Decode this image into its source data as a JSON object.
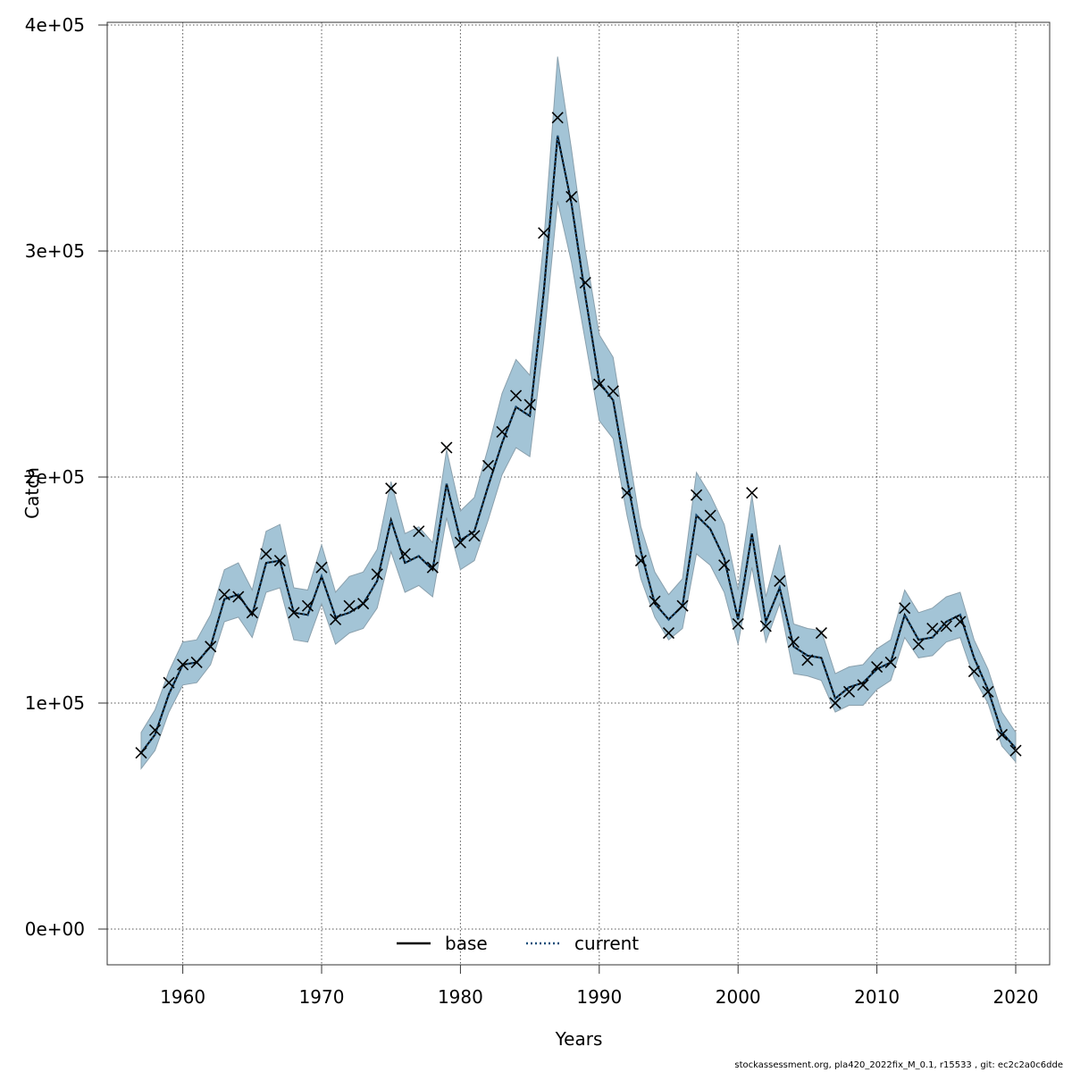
{
  "chart_data": {
    "type": "line",
    "xlabel": "Years",
    "ylabel": "Catch",
    "xlim": [
      1957,
      2020
    ],
    "ylim": [
      0,
      400000
    ],
    "x_ticks": [
      1960,
      1970,
      1980,
      1990,
      2000,
      2010,
      2020
    ],
    "x_tick_labels": [
      "1960",
      "1970",
      "1980",
      "1990",
      "2000",
      "2010",
      "2020"
    ],
    "y_ticks": [
      0,
      100000,
      200000,
      300000,
      400000
    ],
    "y_tick_labels": [
      "0e+00",
      "1e+05",
      "2e+05",
      "3e+05",
      "4e+05"
    ],
    "grid": true,
    "legend_position": "bottom-center",
    "colors": {
      "band": "#a3c4d6",
      "band_edge": "#8aa0ad",
      "current": "#1a4f7a",
      "base": "#000000",
      "observed": "#000000"
    },
    "x": [
      1957,
      1958,
      1959,
      1960,
      1961,
      1962,
      1963,
      1964,
      1965,
      1966,
      1967,
      1968,
      1969,
      1970,
      1971,
      1972,
      1973,
      1974,
      1975,
      1976,
      1977,
      1978,
      1979,
      1980,
      1981,
      1982,
      1983,
      1984,
      1985,
      1986,
      1987,
      1988,
      1989,
      1990,
      1991,
      1992,
      1993,
      1994,
      1995,
      1996,
      1997,
      1998,
      1999,
      2000,
      2001,
      2002,
      2003,
      2004,
      2005,
      2006,
      2007,
      2008,
      2009,
      2010,
      2011,
      2012,
      2013,
      2014,
      2015,
      2016,
      2017,
      2018,
      2019,
      2020
    ],
    "series": [
      {
        "name": "base",
        "style": "solid",
        "values": [
          78000,
          86000,
          104000,
          117000,
          118000,
          125000,
          146000,
          148000,
          139000,
          162000,
          163000,
          140000,
          139000,
          156000,
          138000,
          140000,
          144000,
          154000,
          181000,
          162000,
          165000,
          159000,
          197000,
          172000,
          176000,
          196000,
          215000,
          231000,
          227000,
          282000,
          351000,
          321000,
          280000,
          242000,
          234000,
          199000,
          167000,
          144000,
          137000,
          143000,
          183000,
          177000,
          164000,
          137000,
          175000,
          136000,
          151000,
          125000,
          121000,
          120000,
          102000,
          107000,
          109000,
          115000,
          118000,
          139000,
          128000,
          129000,
          136000,
          139000,
          120000,
          106000,
          87000,
          80000
        ]
      },
      {
        "name": "current",
        "style": "dotted",
        "values": [
          78000,
          86000,
          104000,
          117000,
          118000,
          125000,
          146000,
          148000,
          139000,
          162000,
          163000,
          140000,
          139000,
          156000,
          138000,
          140000,
          144000,
          154000,
          181000,
          162000,
          165000,
          159000,
          197000,
          172000,
          176000,
          196000,
          215000,
          231000,
          227000,
          282000,
          351000,
          321000,
          280000,
          242000,
          234000,
          199000,
          167000,
          144000,
          137000,
          143000,
          183000,
          177000,
          164000,
          137000,
          175000,
          136000,
          151000,
          125000,
          121000,
          120000,
          102000,
          107000,
          109000,
          115000,
          118000,
          139000,
          128000,
          129000,
          136000,
          139000,
          120000,
          106000,
          87000,
          80000
        ]
      }
    ],
    "band_upper": [
      87000,
      97000,
      114000,
      127000,
      128000,
      139000,
      159000,
      162000,
      150000,
      176000,
      179000,
      151000,
      150000,
      170000,
      149000,
      156000,
      158000,
      168000,
      198000,
      175000,
      178000,
      171000,
      212000,
      185000,
      191000,
      213000,
      237000,
      252000,
      245000,
      304000,
      386000,
      345000,
      300000,
      263000,
      253000,
      215000,
      178000,
      158000,
      148000,
      155000,
      202000,
      192000,
      179000,
      150000,
      192000,
      147000,
      170000,
      135000,
      133000,
      132000,
      113000,
      116000,
      117000,
      124000,
      128000,
      150000,
      140000,
      142000,
      147000,
      149000,
      128000,
      115000,
      96000,
      87000
    ],
    "band_lower": [
      71000,
      79000,
      96000,
      108000,
      109000,
      117000,
      136000,
      138000,
      129000,
      149000,
      151000,
      128000,
      127000,
      144000,
      126000,
      131000,
      133000,
      142000,
      167000,
      149000,
      152000,
      147000,
      182000,
      159000,
      163000,
      181000,
      201000,
      213000,
      209000,
      260000,
      322000,
      295000,
      260000,
      225000,
      217000,
      183000,
      155000,
      138000,
      128000,
      133000,
      166000,
      161000,
      149000,
      126000,
      160000,
      127000,
      144000,
      113000,
      112000,
      110000,
      96000,
      99000,
      99000,
      106000,
      110000,
      129000,
      120000,
      121000,
      127000,
      129000,
      111000,
      100000,
      81000,
      74000
    ],
    "observed": [
      78000,
      88000,
      109000,
      117000,
      118000,
      125000,
      148000,
      147000,
      140000,
      166000,
      163000,
      140000,
      143000,
      160000,
      137000,
      143000,
      144000,
      157000,
      195000,
      166000,
      176000,
      160000,
      213000,
      171000,
      174000,
      205000,
      220000,
      236000,
      232000,
      308000,
      359000,
      324000,
      286000,
      241000,
      238000,
      193000,
      163000,
      145000,
      131000,
      143000,
      192000,
      183000,
      161000,
      135000,
      193000,
      134000,
      154000,
      127000,
      119000,
      131000,
      100000,
      105000,
      108000,
      116000,
      118000,
      142000,
      126000,
      133000,
      134000,
      136000,
      114000,
      105000,
      86000,
      79000
    ],
    "legend": [
      {
        "label": "base",
        "style": "solid"
      },
      {
        "label": "current",
        "style": "dotted"
      }
    ]
  },
  "footer_text": "stockassessment.org, pla420_2022fix_M_0.1, r15533 , git: ec2c2a0c6dde"
}
